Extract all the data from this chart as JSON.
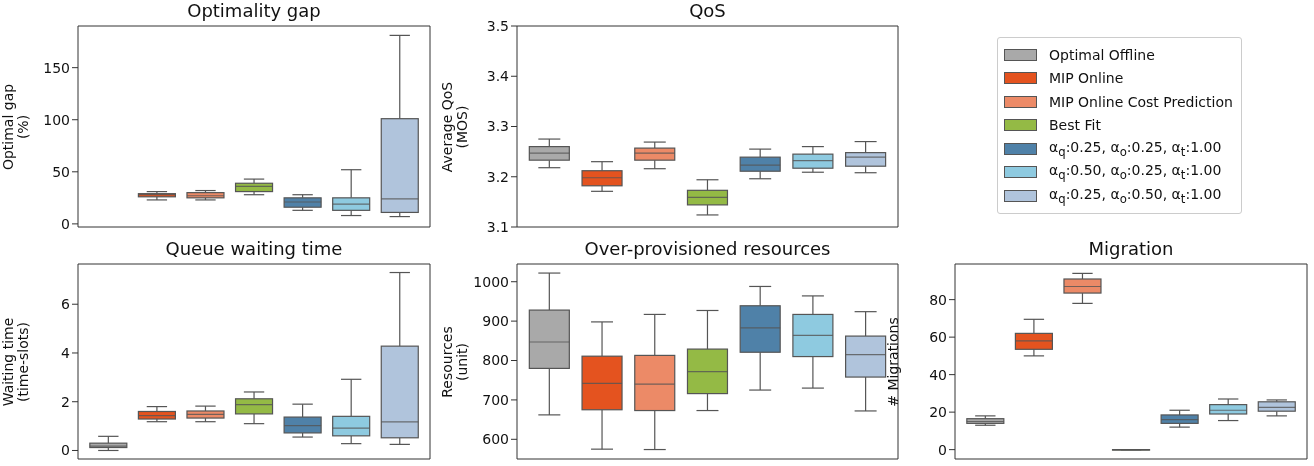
{
  "chart_data": [
    {
      "type": "box",
      "title": "Optimality gap",
      "ylabel": "Optimal gap\n(%)",
      "categories": [
        null
      ],
      "ylim": [
        -3,
        190
      ],
      "yticks": [
        0,
        50,
        100,
        150
      ],
      "tick_labels": "y",
      "series": [
        {
          "color": "#a9a9a9",
          "boxes": [
            null
          ]
        },
        {
          "color": "#e4531f",
          "boxes": [
            {
              "low": 23,
              "q1": 26,
              "median": 28,
              "q3": 29,
              "high": 31
            }
          ]
        },
        {
          "color": "#ec8a67",
          "boxes": [
            {
              "low": 23,
              "q1": 25,
              "median": 27,
              "q3": 30,
              "high": 32
            }
          ]
        },
        {
          "color": "#94ba45",
          "boxes": [
            {
              "low": 28,
              "q1": 31,
              "median": 36,
              "q3": 39,
              "high": 43
            }
          ]
        },
        {
          "color": "#4f81a8",
          "boxes": [
            {
              "low": 13,
              "q1": 16,
              "median": 21,
              "q3": 25,
              "high": 28
            }
          ]
        },
        {
          "color": "#8ecae0",
          "boxes": [
            {
              "low": 8,
              "q1": 13,
              "median": 19,
              "q3": 25,
              "high": 52
            }
          ]
        },
        {
          "color": "#b0c4dc",
          "boxes": [
            {
              "low": 7,
              "q1": 11,
              "median": 24,
              "q3": 101,
              "high": 181
            }
          ]
        }
      ]
    },
    {
      "type": "box",
      "title": "QoS",
      "ylabel": "Average QoS\n(MOS)",
      "categories": [
        null
      ],
      "ylim": [
        3.1,
        3.5
      ],
      "yticks": [
        3.1,
        3.2,
        3.3,
        3.4,
        3.5
      ],
      "tick_labels": "y",
      "legend": "right",
      "series": [
        {
          "name": "Optimal Offline",
          "color": "#a9a9a9",
          "boxes": [
            {
              "low": 3.218,
              "q1": 3.233,
              "median": 3.247,
              "q3": 3.26,
              "high": 3.275
            }
          ]
        },
        {
          "name": "MIP Online",
          "color": "#e4531f",
          "boxes": [
            {
              "low": 3.171,
              "q1": 3.182,
              "median": 3.198,
              "q3": 3.212,
              "high": 3.23
            }
          ]
        },
        {
          "name": "MIP Online Cost Prediction",
          "color": "#ec8a67",
          "boxes": [
            {
              "low": 3.216,
              "q1": 3.233,
              "median": 3.247,
              "q3": 3.257,
              "high": 3.269
            }
          ]
        },
        {
          "name": "Best Fit",
          "color": "#94ba45",
          "boxes": [
            {
              "low": 3.124,
              "q1": 3.144,
              "median": 3.159,
              "q3": 3.173,
              "high": 3.194
            }
          ]
        },
        {
          "name": "α$_{q}$:0.25, α$_{o}$:0.25, α$_{t}$:1.00",
          "color": "#4f81a8",
          "boxes": [
            {
              "low": 3.196,
              "q1": 3.211,
              "median": 3.223,
              "q3": 3.239,
              "high": 3.255
            }
          ]
        },
        {
          "name": "α$_{q}$:0.50, α$_{o}$:0.25, α$_{t}$:1.00",
          "color": "#8ecae0",
          "boxes": [
            {
              "low": 3.209,
              "q1": 3.217,
              "median": 3.232,
              "q3": 3.245,
              "high": 3.26
            }
          ]
        },
        {
          "name": "α$_{q}$:0.25, α$_{o}$:0.50, α$_{t}$:1.00",
          "color": "#b0c4dc",
          "boxes": [
            {
              "low": 3.208,
              "q1": 3.221,
              "median": 3.239,
              "q3": 3.248,
              "high": 3.27
            }
          ]
        }
      ]
    },
    {
      "type": "box",
      "title": "Queue waiting time",
      "ylabel": "Waiting time\n(time-slots)",
      "categories": [
        null
      ],
      "ylim": [
        -0.35,
        7.65
      ],
      "yticks": [
        0,
        2,
        4,
        6
      ],
      "tick_labels": "y",
      "series": [
        {
          "color": "#a9a9a9",
          "boxes": [
            {
              "low": 0.0,
              "q1": 0.12,
              "median": 0.18,
              "q3": 0.3,
              "high": 0.58
            }
          ]
        },
        {
          "color": "#e4531f",
          "boxes": [
            {
              "low": 1.18,
              "q1": 1.29,
              "median": 1.43,
              "q3": 1.6,
              "high": 1.8
            }
          ]
        },
        {
          "color": "#ec8a67",
          "boxes": [
            {
              "low": 1.18,
              "q1": 1.33,
              "median": 1.48,
              "q3": 1.62,
              "high": 1.82
            }
          ]
        },
        {
          "color": "#94ba45",
          "boxes": [
            {
              "low": 1.1,
              "q1": 1.5,
              "median": 1.88,
              "q3": 2.12,
              "high": 2.4
            }
          ]
        },
        {
          "color": "#4f81a8",
          "boxes": [
            {
              "low": 0.55,
              "q1": 0.72,
              "median": 1.02,
              "q3": 1.37,
              "high": 1.9
            }
          ]
        },
        {
          "color": "#8ecae0",
          "boxes": [
            {
              "low": 0.28,
              "q1": 0.6,
              "median": 0.92,
              "q3": 1.4,
              "high": 2.92
            }
          ]
        },
        {
          "color": "#b0c4dc",
          "boxes": [
            {
              "low": 0.25,
              "q1": 0.52,
              "median": 1.17,
              "q3": 4.28,
              "high": 7.3
            }
          ]
        }
      ]
    },
    {
      "type": "box",
      "title": "Over-provisioned resources",
      "ylabel": "Resources\n(unit)",
      "categories": [
        null
      ],
      "ylim": [
        550,
        1045
      ],
      "yticks": [
        600,
        700,
        800,
        900,
        1000
      ],
      "tick_labels": "y",
      "series": [
        {
          "color": "#a9a9a9",
          "boxes": [
            {
              "low": 662,
              "q1": 780,
              "median": 847,
              "q3": 928,
              "high": 1022
            }
          ]
        },
        {
          "color": "#e4531f",
          "boxes": [
            {
              "low": 575,
              "q1": 675,
              "median": 742,
              "q3": 811,
              "high": 898
            }
          ]
        },
        {
          "color": "#ec8a67",
          "boxes": [
            {
              "low": 574,
              "q1": 673,
              "median": 740,
              "q3": 813,
              "high": 917
            }
          ]
        },
        {
          "color": "#94ba45",
          "boxes": [
            {
              "low": 673,
              "q1": 716,
              "median": 772,
              "q3": 829,
              "high": 927
            }
          ]
        },
        {
          "color": "#4f81a8",
          "boxes": [
            {
              "low": 725,
              "q1": 821,
              "median": 883,
              "q3": 939,
              "high": 988
            }
          ]
        },
        {
          "color": "#8ecae0",
          "boxes": [
            {
              "low": 730,
              "q1": 810,
              "median": 864,
              "q3": 917,
              "high": 964
            }
          ]
        },
        {
          "color": "#b0c4dc",
          "boxes": [
            {
              "low": 672,
              "q1": 758,
              "median": 815,
              "q3": 862,
              "high": 924
            }
          ]
        }
      ]
    },
    {
      "type": "box",
      "title": "Migration",
      "ylabel": "# Migrations",
      "categories": [
        null
      ],
      "ylim": [
        -5,
        99
      ],
      "yticks": [
        0,
        20,
        40,
        60,
        80
      ],
      "tick_labels": "y",
      "series": [
        {
          "color": "#a9a9a9",
          "boxes": [
            {
              "low": 13,
              "q1": 14,
              "median": 15,
              "q3": 16.5,
              "high": 18
            }
          ]
        },
        {
          "color": "#e4531f",
          "boxes": [
            {
              "low": 50,
              "q1": 53.5,
              "median": 58,
              "q3": 62,
              "high": 69.5
            }
          ]
        },
        {
          "color": "#ec8a67",
          "boxes": [
            {
              "low": 78,
              "q1": 83.5,
              "median": 87,
              "q3": 91,
              "high": 94
            }
          ]
        },
        {
          "color": "#94ba45",
          "boxes": [
            {
              "low": 0,
              "q1": 0,
              "median": 0,
              "q3": 0,
              "high": 0
            }
          ]
        },
        {
          "color": "#4f81a8",
          "boxes": [
            {
              "low": 12,
              "q1": 14,
              "median": 16,
              "q3": 18.5,
              "high": 21
            }
          ]
        },
        {
          "color": "#8ecae0",
          "boxes": [
            {
              "low": 15.5,
              "q1": 19,
              "median": 21,
              "q3": 24,
              "high": 27
            }
          ]
        },
        {
          "color": "#b0c4dc",
          "boxes": [
            {
              "low": 18,
              "q1": 20.5,
              "median": 22.5,
              "q3": 25.5,
              "high": 26.5
            }
          ]
        }
      ]
    }
  ]
}
